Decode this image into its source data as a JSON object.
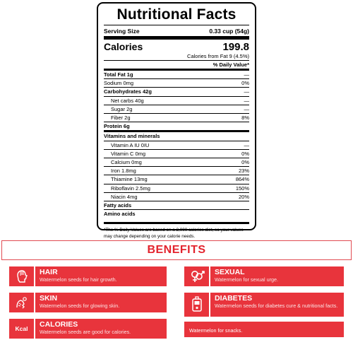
{
  "label": {
    "title": "Nutritional Facts",
    "serving_label": "Serving Size",
    "serving_value": "0.33 cup (54g)",
    "calories_label": "Calories",
    "calories_value": "199.8",
    "calories_from_fat": "Calories from Fat 9 (4.5%)",
    "daily_value_header": "% Daily Value*",
    "rows": [
      {
        "name": "Total Fat 1g",
        "pct": "—"
      },
      {
        "name": "Sodium 0mg",
        "pct": "0%"
      },
      {
        "name": "Carbohydrates 42g",
        "pct": "—"
      },
      {
        "name": "Net carbs 40g",
        "pct": "—"
      },
      {
        "name": "Sugar 2g",
        "pct": "—"
      },
      {
        "name": "Fiber 2g",
        "pct": "8%"
      },
      {
        "name": "Protein 6g",
        "pct": ""
      },
      {
        "name": "Vitamins and minerals",
        "pct": ""
      },
      {
        "name": "Vitamin A IU 0IU",
        "pct": "—"
      },
      {
        "name": "Vitamin C 0mg",
        "pct": "0%"
      },
      {
        "name": "Calcium 0mg",
        "pct": "0%"
      },
      {
        "name": "Iron 1.8mg",
        "pct": "23%"
      },
      {
        "name": "Thiamine 13mg",
        "pct": "864%"
      },
      {
        "name": "Riboflavin 2.5mg",
        "pct": "150%"
      },
      {
        "name": "Niacin 4mg",
        "pct": "20%"
      },
      {
        "name": "Fatty acids",
        "pct": ""
      },
      {
        "name": "Amino acids",
        "pct": ""
      }
    ],
    "footnote": "*The % Daily Values are based on a 2,000 calories diet, so your values may change depending on your calorie needs."
  },
  "benefits": {
    "heading": "BENEFITS",
    "accent_color": "#e8343c",
    "cards": [
      {
        "title": "HAIR",
        "desc": "Watermelon seeds for hair growth.",
        "icon": "hair-icon"
      },
      {
        "title": "SKIN",
        "desc": "Watermelon seeds for glowing skin.",
        "icon": "skin-icon"
      },
      {
        "title": "CALORIES",
        "desc": "Watermelon seeds are good for calories.",
        "icon": "kcal-icon",
        "icon_text": "Kcal"
      },
      {
        "title": "SEXUAL",
        "desc": "Watermelon for sexual urge.",
        "icon": "gender-icon"
      },
      {
        "title": "DIABETES",
        "desc": "Watermelon seeds for diabetes cure & nutritional facts.",
        "icon": "glucose-meter-icon"
      },
      {
        "title": "",
        "desc": "Watermelon for snacks.",
        "icon": ""
      }
    ]
  }
}
